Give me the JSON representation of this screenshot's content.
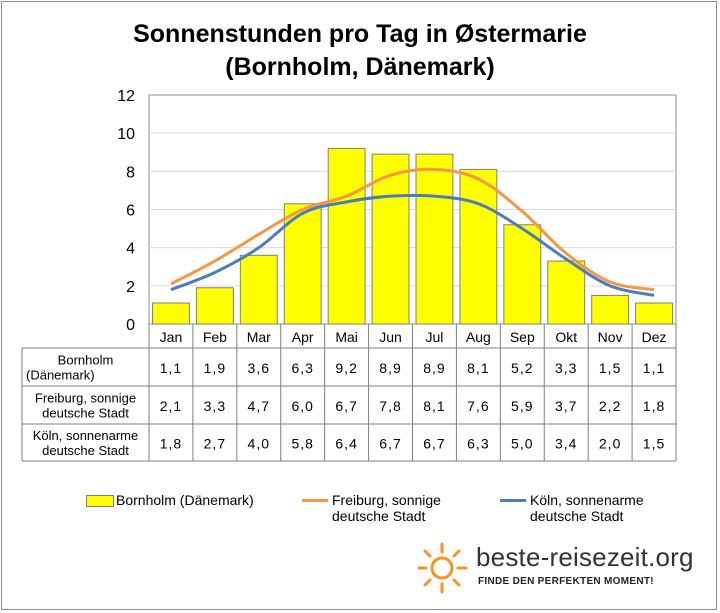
{
  "chart_data": {
    "type": "bar",
    "title_line1": "Sonnenstunden pro Tag in Østermarie",
    "title_line2": "(Bornholm, Dänemark)",
    "categories": [
      "Jan",
      "Feb",
      "Mar",
      "Apr",
      "Mai",
      "Jun",
      "Jul",
      "Aug",
      "Sep",
      "Okt",
      "Nov",
      "Dez"
    ],
    "ylim": [
      0,
      12
    ],
    "yticks": [
      "0",
      "2",
      "4",
      "6",
      "8",
      "10",
      "12"
    ],
    "grid": true,
    "series": [
      {
        "name": "Bornholm (Dänemark)",
        "kind": "bar",
        "color": "#ffff00",
        "row_label_lines": [
          "Bornholm",
          "(Dänemark)"
        ],
        "legend_lines": [
          "Bornholm (Dänemark)"
        ],
        "values": [
          1.1,
          1.9,
          3.6,
          6.3,
          9.2,
          8.9,
          8.9,
          8.1,
          5.2,
          3.3,
          1.5,
          1.1
        ],
        "labels": [
          "1,1",
          "1,9",
          "3,6",
          "6,3",
          "9,2",
          "8,9",
          "8,9",
          "8,1",
          "5,2",
          "3,3",
          "1,5",
          "1,1"
        ]
      },
      {
        "name": "Freiburg, sonnige deutsche Stadt",
        "kind": "line",
        "color": "#f79646",
        "row_label_lines": [
          "Freiburg, sonnige",
          "deutsche Stadt"
        ],
        "legend_lines": [
          "Freiburg, sonnige",
          "deutsche Stadt"
        ],
        "values": [
          2.1,
          3.3,
          4.7,
          6.0,
          6.7,
          7.8,
          8.1,
          7.6,
          5.9,
          3.7,
          2.2,
          1.8
        ],
        "labels": [
          "2,1",
          "3,3",
          "4,7",
          "6,0",
          "6,7",
          "7,8",
          "8,1",
          "7,6",
          "5,9",
          "3,7",
          "2,2",
          "1,8"
        ]
      },
      {
        "name": "Köln, sonnenarme deutsche Stadt",
        "kind": "line",
        "color": "#4a7ebb",
        "row_label_lines": [
          "Köln, sonnenarme",
          "deutsche Stadt"
        ],
        "legend_lines": [
          "Köln, sonnenarme",
          "deutsche Stadt"
        ],
        "values": [
          1.8,
          2.7,
          4.0,
          5.8,
          6.4,
          6.7,
          6.7,
          6.3,
          5.0,
          3.4,
          2.0,
          1.5
        ],
        "labels": [
          "1,8",
          "2,7",
          "4,0",
          "5,8",
          "6,4",
          "6,7",
          "6,7",
          "6,3",
          "5,0",
          "3,4",
          "2,0",
          "1,5"
        ]
      }
    ]
  },
  "brand": {
    "name": "beste-reisezeit.org",
    "tagline": "FINDE DEN PERFEKTEN MOMENT!",
    "accent_color": "#f7941d"
  }
}
